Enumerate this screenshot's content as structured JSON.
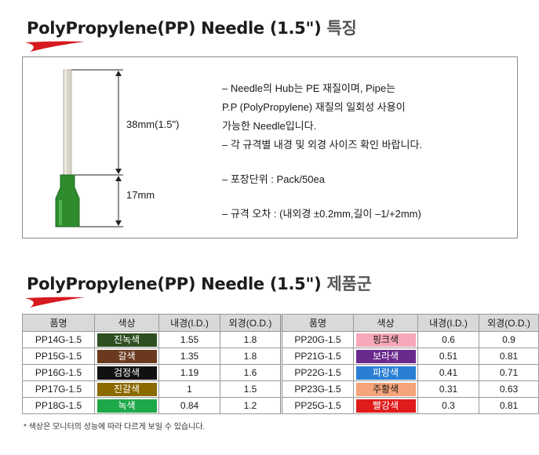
{
  "section1": {
    "title_en": "PolyPropylene(PP) Needle (1.5\")",
    "title_ko": "특징"
  },
  "diagram": {
    "label_pipe": "38mm(1.5\")",
    "label_hub": "17mm",
    "pipe_color": "#d8d3c8",
    "hub_color": "#2e8b2e"
  },
  "features": [
    "– Needle의 Hub는 PE 재질이며, Pipe는",
    "P.P (PolyPropylene) 재질의 일회성 사용이",
    "가능한 Needle입니다.",
    "– 각 규격별 내경 및 외경 사이즈 확인 바랍니다.",
    "– 포장단위 : Pack/50ea",
    "– 규격 오차 : (내외경 ±0.2mm,길이 –1/+2mm)"
  ],
  "section2": {
    "title_en": "PolyPropylene(PP) Needle (1.5\")",
    "title_ko": "제품군"
  },
  "table": {
    "headers": [
      "품명",
      "색상",
      "내경(I.D.)",
      "외경(O.D.)"
    ],
    "left": [
      {
        "name": "PP14G-1.5",
        "color": "진녹색",
        "bg": "#2f4f22",
        "fg": "#ffffff",
        "id": "1.55",
        "od": "1.8"
      },
      {
        "name": "PP15G-1.5",
        "color": "갈색",
        "bg": "#6b3a1e",
        "fg": "#ffffff",
        "id": "1.35",
        "od": "1.8"
      },
      {
        "name": "PP16G-1.5",
        "color": "검정색",
        "bg": "#111111",
        "fg": "#ffffff",
        "id": "1.19",
        "od": "1.6"
      },
      {
        "name": "PP17G-1.5",
        "color": "진갈색",
        "bg": "#8b6a00",
        "fg": "#ffffff",
        "id": "1",
        "od": "1.5"
      },
      {
        "name": "PP18G-1.5",
        "color": "녹색",
        "bg": "#1fa84a",
        "fg": "#ffffff",
        "id": "0.84",
        "od": "1.2"
      }
    ],
    "right": [
      {
        "name": "PP20G-1.5",
        "color": "핑크색",
        "bg": "#f7a8b8",
        "fg": "#1a1a1a",
        "id": "0.6",
        "od": "0.9"
      },
      {
        "name": "PP21G-1.5",
        "color": "보라색",
        "bg": "#6a2a8c",
        "fg": "#ffffff",
        "id": "0.51",
        "od": "0.81"
      },
      {
        "name": "PP22G-1.5",
        "color": "파랑색",
        "bg": "#2a7fd4",
        "fg": "#ffffff",
        "id": "0.41",
        "od": "0.71"
      },
      {
        "name": "PP23G-1.5",
        "color": "주황색",
        "bg": "#f4a37a",
        "fg": "#1a1a1a",
        "id": "0.31",
        "od": "0.63"
      },
      {
        "name": "PP25G-1.5",
        "color": "빨강색",
        "bg": "#e01b1b",
        "fg": "#ffffff",
        "id": "0.3",
        "od": "0.81"
      }
    ]
  },
  "note": "* 색상은 모니터의 성능에 따라 다르게 보일 수 있습니다.",
  "accent_color": "#d71920"
}
